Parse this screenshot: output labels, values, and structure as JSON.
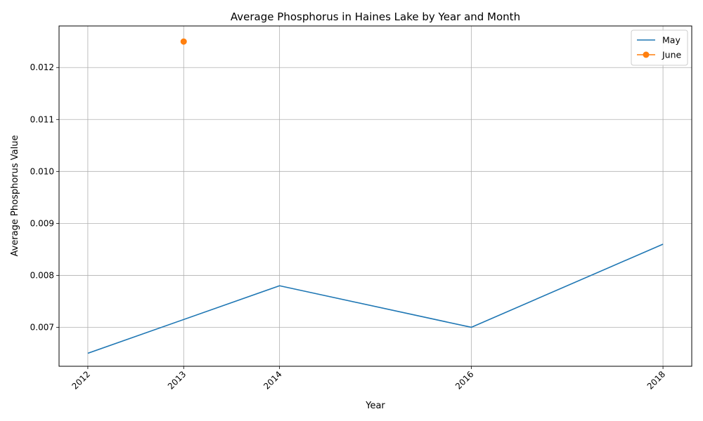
{
  "chart_data": {
    "type": "line",
    "title": "Average Phosphorus in Haines Lake by Year and Month",
    "xlabel": "Year",
    "ylabel": "Average Phosphorus Value",
    "xlim": [
      2011.7,
      2018.3
    ],
    "ylim": [
      0.00625,
      0.0128
    ],
    "x_ticks": [
      2012,
      2013,
      2014,
      2016,
      2018
    ],
    "x_tick_labels": [
      "2012",
      "2013",
      "2014",
      "2016",
      "2018"
    ],
    "y_ticks": [
      0.007,
      0.008,
      0.009,
      0.01,
      0.011,
      0.012
    ],
    "y_tick_labels": [
      "0.007",
      "0.008",
      "0.009",
      "0.010",
      "0.011",
      "0.012"
    ],
    "grid": true,
    "legend_position": "top-right",
    "series": [
      {
        "name": "May",
        "color": "#1f77b4",
        "marker": "none",
        "x": [
          2012,
          2014,
          2016,
          2018
        ],
        "y": [
          0.0065,
          0.0078,
          0.007,
          0.0086
        ]
      },
      {
        "name": "June",
        "color": "#ff7f0e",
        "marker": "circle",
        "x": [
          2013
        ],
        "y": [
          0.0125
        ]
      }
    ]
  }
}
